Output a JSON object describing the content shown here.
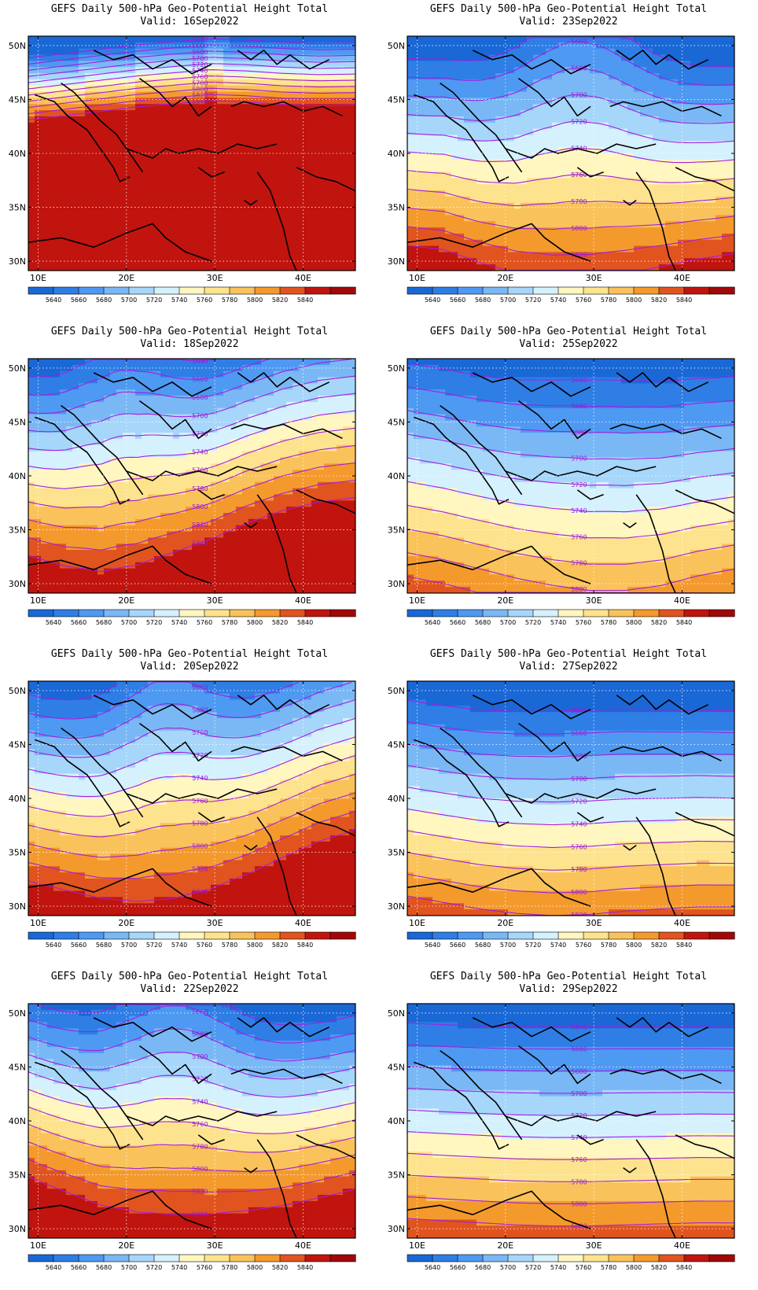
{
  "colorbar": {
    "levels": [
      "5640",
      "5660",
      "5680",
      "5700",
      "5720",
      "5740",
      "5760",
      "5780",
      "5800",
      "5820",
      "5840"
    ],
    "colors": [
      "#1a68d6",
      "#2f7ee6",
      "#4e99f2",
      "#7ab8f5",
      "#a6d6fa",
      "#d4f1fd",
      "#fff6c0",
      "#fde38d",
      "#f9c25a",
      "#f49a2d",
      "#e1541f",
      "#c1140e",
      "#a10808"
    ]
  },
  "axes": {
    "lon_labels": [
      "10E",
      "20E",
      "30E",
      "40E"
    ],
    "lat_labels": [
      "50N",
      "45N",
      "40N",
      "35N",
      "30N"
    ]
  },
  "panels": [
    {
      "title": "GEFS Daily 500-hPa Geo-Potential Height Total",
      "valid": "Valid: 16Sep2022",
      "field": {
        "base": [
          5570,
          5584,
          5598,
          5612,
          5622,
          5632,
          5628,
          5620,
          5616,
          5618
        ],
        "grad": 42,
        "trough_x": 0.5,
        "trough_amp": 0,
        "trough_w": 0.25
      },
      "contour_labels": [
        "5640",
        "5660",
        "5680",
        "5700",
        "5720",
        "5740",
        "5760",
        "5780",
        "5800",
        "5820",
        "5840"
      ]
    },
    {
      "title": "GEFS Daily 500-hPa Geo-Potential Height Total",
      "valid": "Valid: 23Sep2022",
      "field": {
        "base": [
          5615,
          5610,
          5596,
          5585,
          5580,
          5580,
          5585,
          5592,
          5600,
          5606
        ],
        "grad": 14,
        "trough_x": 0.52,
        "trough_amp": 95,
        "trough_w": 0.26
      },
      "contour_labels": [
        "5640",
        "5660",
        "5680",
        "5700",
        "5720",
        "5740",
        "5760",
        "5780",
        "5800",
        "5820",
        "5840"
      ]
    },
    {
      "title": "GEFS Daily 500-hPa Geo-Potential Height Total",
      "valid": "Valid: 18Sep2022",
      "field": {
        "base": [
          5612,
          5598,
          5590,
          5596,
          5612,
          5630,
          5650,
          5665,
          5675,
          5680
        ],
        "grad": 15,
        "trough_x": 0.28,
        "trough_amp": 70,
        "trough_w": 0.2
      },
      "contour_labels": [
        "5640",
        "5660",
        "5680",
        "5700",
        "5720",
        "5740",
        "5760",
        "5780",
        "5800",
        "5820",
        "5840"
      ]
    },
    {
      "title": "GEFS Daily 500-hPa Geo-Potential Height Total",
      "valid": "Valid: 25Sep2022",
      "field": {
        "base": [
          5636,
          5630,
          5622,
          5614,
          5608,
          5604,
          5604,
          5608,
          5616,
          5622
        ],
        "grad": 11,
        "trough_x": 0.6,
        "trough_amp": 25,
        "trough_w": 0.3
      },
      "contour_labels": [
        "5640",
        "5660",
        "5680",
        "5700",
        "5720",
        "5740",
        "5760",
        "5780",
        "5800",
        "5820",
        "5840"
      ]
    },
    {
      "title": "GEFS Daily 500-hPa Geo-Potential Height Total",
      "valid": "Valid: 20Sep2022",
      "field": {
        "base": [
          5625,
          5615,
          5605,
          5600,
          5602,
          5612,
          5630,
          5650,
          5668,
          5680
        ],
        "grad": 14,
        "trough_x": 0.42,
        "trough_amp": 75,
        "trough_w": 0.2
      },
      "contour_labels": [
        "5640",
        "5660",
        "5680",
        "5700",
        "5720",
        "5740",
        "5760",
        "5780",
        "5800",
        "5820",
        "5840"
      ]
    },
    {
      "title": "GEFS Daily 500-hPa Geo-Potential Height Total",
      "valid": "Valid: 27Sep2022",
      "field": {
        "base": [
          5622,
          5616,
          5610,
          5606,
          5604,
          5605,
          5608,
          5610,
          5612,
          5612
        ],
        "grad": 12,
        "trough_x": 0.5,
        "trough_amp": 12,
        "trough_w": 0.3
      },
      "contour_labels": [
        "5640",
        "5660",
        "5680",
        "5700",
        "5720",
        "5740",
        "5760",
        "5780",
        "5800",
        "5820",
        "5840"
      ]
    },
    {
      "title": "GEFS Daily 500-hPa Geo-Potential Height Total",
      "valid": "Valid: 22Sep2022",
      "field": {
        "base": [
          5640,
          5622,
          5604,
          5594,
          5590,
          5592,
          5598,
          5606,
          5616,
          5626
        ],
        "grad": 15,
        "trough_x": 0.45,
        "trough_amp": 85,
        "trough_w": 0.24
      },
      "contour_labels": [
        "5640",
        "5660",
        "5680",
        "5700",
        "5720",
        "5740",
        "5760",
        "5780",
        "5800",
        "5820",
        "5840"
      ]
    },
    {
      "title": "GEFS Daily 500-hPa Geo-Potential Height Total",
      "valid": "Valid: 29Sep2022",
      "field": {
        "base": [
          5622,
          5620,
          5618,
          5616,
          5615,
          5615,
          5616,
          5617,
          5618,
          5618
        ],
        "grad": 12,
        "trough_x": 0.5,
        "trough_amp": 5,
        "trough_w": 0.3
      },
      "contour_labels": [
        "5640",
        "5660",
        "5680",
        "5700",
        "5720",
        "5740",
        "5760",
        "5780",
        "5800",
        "5820",
        "5840"
      ]
    }
  ]
}
